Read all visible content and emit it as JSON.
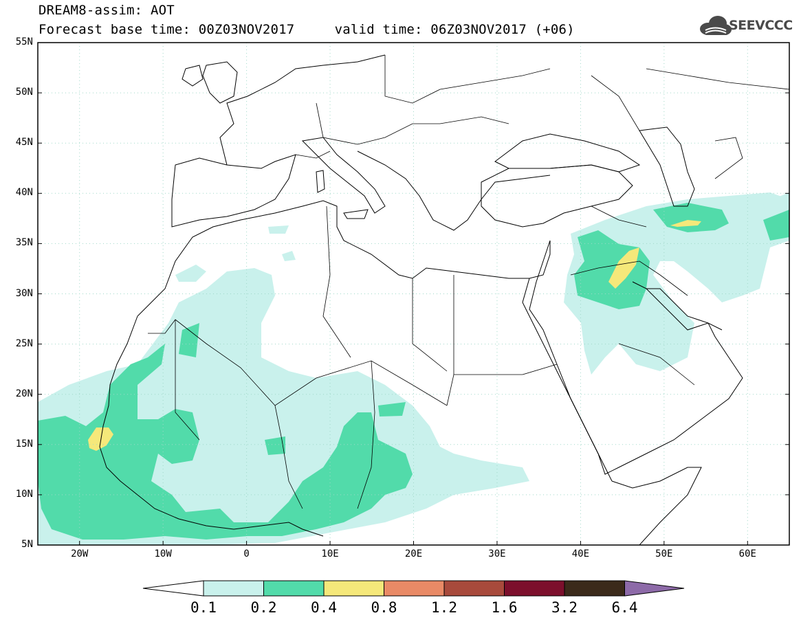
{
  "title": {
    "line1": "DREAM8-assim: AOT",
    "line2": "Forecast base time: 00Z03NOV2017     valid time: 06Z03NOV2017 (+06)"
  },
  "logo": {
    "text": "SEEVCCC",
    "icon": "cloud-logo-icon",
    "color": "#4a4a4a"
  },
  "map": {
    "lon_range": [
      -25,
      65
    ],
    "lat_range": [
      5,
      55
    ],
    "lat_labels": [
      "5N",
      "10N",
      "15N",
      "20N",
      "25N",
      "30N",
      "35N",
      "40N",
      "45N",
      "50N",
      "55N"
    ],
    "lon_labels": [
      "20W",
      "10W",
      "0",
      "10E",
      "20E",
      "30E",
      "40E",
      "50E",
      "60E"
    ],
    "grid": "dotted"
  },
  "colorbar": {
    "labels": [
      "0.1",
      "0.2",
      "0.4",
      "0.8",
      "1.2",
      "1.6",
      "3.2",
      "6.4"
    ],
    "colors": [
      "#ffffff",
      "#c9f1ec",
      "#52dbaa",
      "#f5e87a",
      "#e98a66",
      "#a84a3c",
      "#7c0f2c",
      "#3b2a1a",
      "#8d6aa8"
    ]
  }
}
